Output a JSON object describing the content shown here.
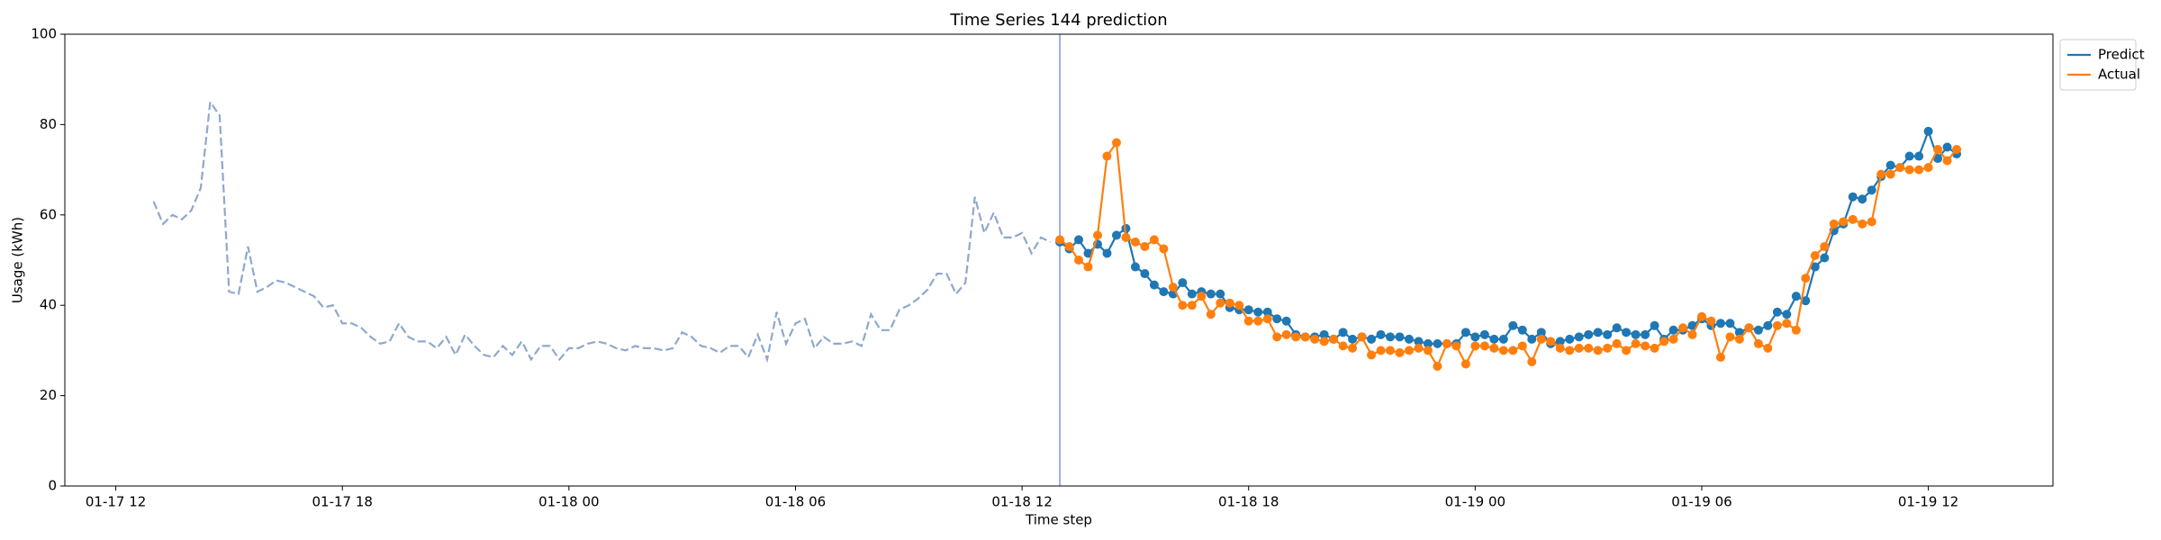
{
  "chart_data": {
    "type": "line",
    "title": "Time Series 144 prediction",
    "x_label": "Time step",
    "y_label": "Usage (kWh)",
    "xlim": [
      10.65,
      63.3
    ],
    "ylim": [
      0,
      100
    ],
    "xticks": [
      {
        "value": 12,
        "label": "01-17 12"
      },
      {
        "value": 18,
        "label": "01-17 18"
      },
      {
        "value": 24,
        "label": "01-18 00"
      },
      {
        "value": 30,
        "label": "01-18 06"
      },
      {
        "value": 36,
        "label": "01-18 12"
      },
      {
        "value": 42,
        "label": "01-18 18"
      },
      {
        "value": 48,
        "label": "01-19 00"
      },
      {
        "value": 54,
        "label": "01-19 06"
      },
      {
        "value": 60,
        "label": "01-19 12"
      }
    ],
    "yticks": [
      0,
      20,
      40,
      60,
      80,
      100
    ],
    "vline_x": 37,
    "vline_color": "#7b9bd1",
    "legend": "upper right outside",
    "grid": false,
    "series": [
      {
        "color": "#8fa8cc",
        "dashed": true,
        "markers": false,
        "x": [
          13,
          13.25,
          13.5,
          13.75,
          14,
          14.25,
          14.5,
          14.75,
          15,
          15.25,
          15.5,
          15.75,
          16,
          16.25,
          16.5,
          16.75,
          17,
          17.25,
          17.5,
          17.75,
          18,
          18.25,
          18.5,
          18.75,
          19,
          19.25,
          19.5,
          19.75,
          20,
          20.25,
          20.5,
          20.75,
          21,
          21.25,
          21.5,
          21.75,
          22,
          22.25,
          22.5,
          22.75,
          23,
          23.25,
          23.5,
          23.75,
          24,
          24.25,
          24.5,
          24.75,
          25,
          25.25,
          25.5,
          25.75,
          26,
          26.25,
          26.5,
          26.75,
          27,
          27.25,
          27.5,
          27.75,
          28,
          28.25,
          28.5,
          28.75,
          29,
          29.25,
          29.5,
          29.75,
          30,
          30.25,
          30.5,
          30.75,
          31,
          31.25,
          31.5,
          31.75,
          32,
          32.25,
          32.5,
          32.75,
          33,
          33.25,
          33.5,
          33.75,
          34,
          34.25,
          34.5,
          34.75,
          35,
          35.25,
          35.5,
          35.75,
          36,
          36.25,
          36.5,
          36.75
        ],
        "values": [
          63,
          58,
          60,
          59,
          61,
          66,
          85,
          82,
          43,
          42.5,
          53,
          43,
          44,
          45.5,
          45,
          44,
          43,
          42,
          39.5,
          40,
          36,
          36,
          35,
          33,
          31.5,
          32,
          36,
          33,
          32,
          32,
          30.5,
          33,
          29,
          33.5,
          31,
          29,
          28.5,
          31,
          29,
          32,
          28,
          31,
          31,
          28,
          30.5,
          30.5,
          31.5,
          32,
          31.5,
          30.5,
          30,
          31,
          30.5,
          30.5,
          30,
          30.5,
          34,
          33,
          31,
          30.5,
          29.5,
          31,
          31,
          28.5,
          33.5,
          28,
          38.5,
          31.5,
          36,
          37,
          30.5,
          33,
          31.5,
          31.5,
          32,
          31,
          38,
          34.5,
          34.5,
          39,
          40,
          41.5,
          43.5,
          47,
          47,
          42.5,
          45,
          64,
          56,
          60.5,
          55,
          55,
          56,
          51.5,
          55,
          54
        ]
      },
      {
        "name": "Predict",
        "color": "#1f77b4",
        "dashed": false,
        "markers": true,
        "x": [
          37,
          37.25,
          37.5,
          37.75,
          38,
          38.25,
          38.5,
          38.75,
          39,
          39.25,
          39.5,
          39.75,
          40,
          40.25,
          40.5,
          40.75,
          41,
          41.25,
          41.5,
          41.75,
          42,
          42.25,
          42.5,
          42.75,
          43,
          43.25,
          43.5,
          43.75,
          44,
          44.25,
          44.5,
          44.75,
          45,
          45.25,
          45.5,
          45.75,
          46,
          46.25,
          46.5,
          46.75,
          47,
          47.25,
          47.5,
          47.75,
          48,
          48.25,
          48.5,
          48.75,
          49,
          49.25,
          49.5,
          49.75,
          50,
          50.25,
          50.5,
          50.75,
          51,
          51.25,
          51.5,
          51.75,
          52,
          52.25,
          52.5,
          52.75,
          53,
          53.25,
          53.5,
          53.75,
          54,
          54.25,
          54.5,
          54.75,
          55,
          55.25,
          55.5,
          55.75,
          56,
          56.25,
          56.5,
          56.75,
          57,
          57.25,
          57.5,
          57.75,
          58,
          58.25,
          58.5,
          58.75,
          59,
          59.25,
          59.5,
          59.75,
          60,
          60.25,
          60.5,
          60.75
        ],
        "values": [
          54,
          52.5,
          54.5,
          51.5,
          53.5,
          51.5,
          55.5,
          57,
          48.5,
          47,
          44.5,
          43,
          42.5,
          45,
          42.5,
          43,
          42.5,
          42.5,
          39.5,
          39,
          39,
          38.5,
          38.5,
          37,
          36.5,
          33.5,
          33,
          33,
          33.5,
          32.5,
          34,
          32.5,
          33,
          32.5,
          33.5,
          33,
          33,
          32.5,
          32,
          31.5,
          31.5,
          31.5,
          31.5,
          34,
          33,
          33.5,
          32.5,
          32.5,
          35.5,
          34.5,
          32.5,
          34,
          31.5,
          32,
          32.5,
          33,
          33.5,
          34,
          33.5,
          35,
          34,
          33.5,
          33.5,
          35.5,
          32.5,
          34.5,
          34.5,
          35.5,
          37,
          35.5,
          36,
          36,
          34,
          35,
          34.5,
          35.5,
          38.5,
          38,
          42,
          41,
          48.5,
          50.5,
          56.5,
          58,
          64,
          63.5,
          65.5,
          68.5,
          71,
          70.5,
          73,
          73,
          78.5,
          72.5,
          75,
          73.5
        ]
      },
      {
        "name": "Actual",
        "color": "#ff7f0e",
        "dashed": false,
        "markers": true,
        "x": [
          37,
          37.25,
          37.5,
          37.75,
          38,
          38.25,
          38.5,
          38.75,
          39,
          39.25,
          39.5,
          39.75,
          40,
          40.25,
          40.5,
          40.75,
          41,
          41.25,
          41.5,
          41.75,
          42,
          42.25,
          42.5,
          42.75,
          43,
          43.25,
          43.5,
          43.75,
          44,
          44.25,
          44.5,
          44.75,
          45,
          45.25,
          45.5,
          45.75,
          46,
          46.25,
          46.5,
          46.75,
          47,
          47.25,
          47.5,
          47.75,
          48,
          48.25,
          48.5,
          48.75,
          49,
          49.25,
          49.5,
          49.75,
          50,
          50.25,
          50.5,
          50.75,
          51,
          51.25,
          51.5,
          51.75,
          52,
          52.25,
          52.5,
          52.75,
          53,
          53.25,
          53.5,
          53.75,
          54,
          54.25,
          54.5,
          54.75,
          55,
          55.25,
          55.5,
          55.75,
          56,
          56.25,
          56.5,
          56.75,
          57,
          57.25,
          57.5,
          57.75,
          58,
          58.25,
          58.5,
          58.75,
          59,
          59.25,
          59.5,
          59.75,
          60,
          60.25,
          60.5,
          60.75
        ],
        "values": [
          54.5,
          53,
          50,
          48.5,
          55.5,
          73,
          76,
          55,
          54,
          53,
          54.5,
          52.5,
          44,
          40,
          40,
          42,
          38,
          40.5,
          40.5,
          40,
          36.5,
          36.5,
          37,
          33,
          33.5,
          33,
          33,
          32.5,
          32,
          32.5,
          31,
          30.5,
          33,
          29,
          30,
          30,
          29.5,
          30,
          30.5,
          30,
          26.5,
          31.5,
          31,
          27,
          31,
          31,
          30.5,
          30,
          30,
          31,
          27.5,
          32.5,
          32,
          30.5,
          30,
          30.5,
          30.5,
          30,
          30.5,
          31.5,
          30,
          31.5,
          31,
          30.5,
          32,
          32.5,
          35,
          33.5,
          37.5,
          36.5,
          28.5,
          33,
          32.5,
          35,
          31.5,
          30.5,
          35.5,
          36,
          34.5,
          46,
          51,
          53,
          58,
          58.5,
          59,
          58,
          58.5,
          69,
          69,
          70.5,
          70,
          70,
          70.5,
          74.5,
          72,
          74.5
        ]
      }
    ]
  }
}
